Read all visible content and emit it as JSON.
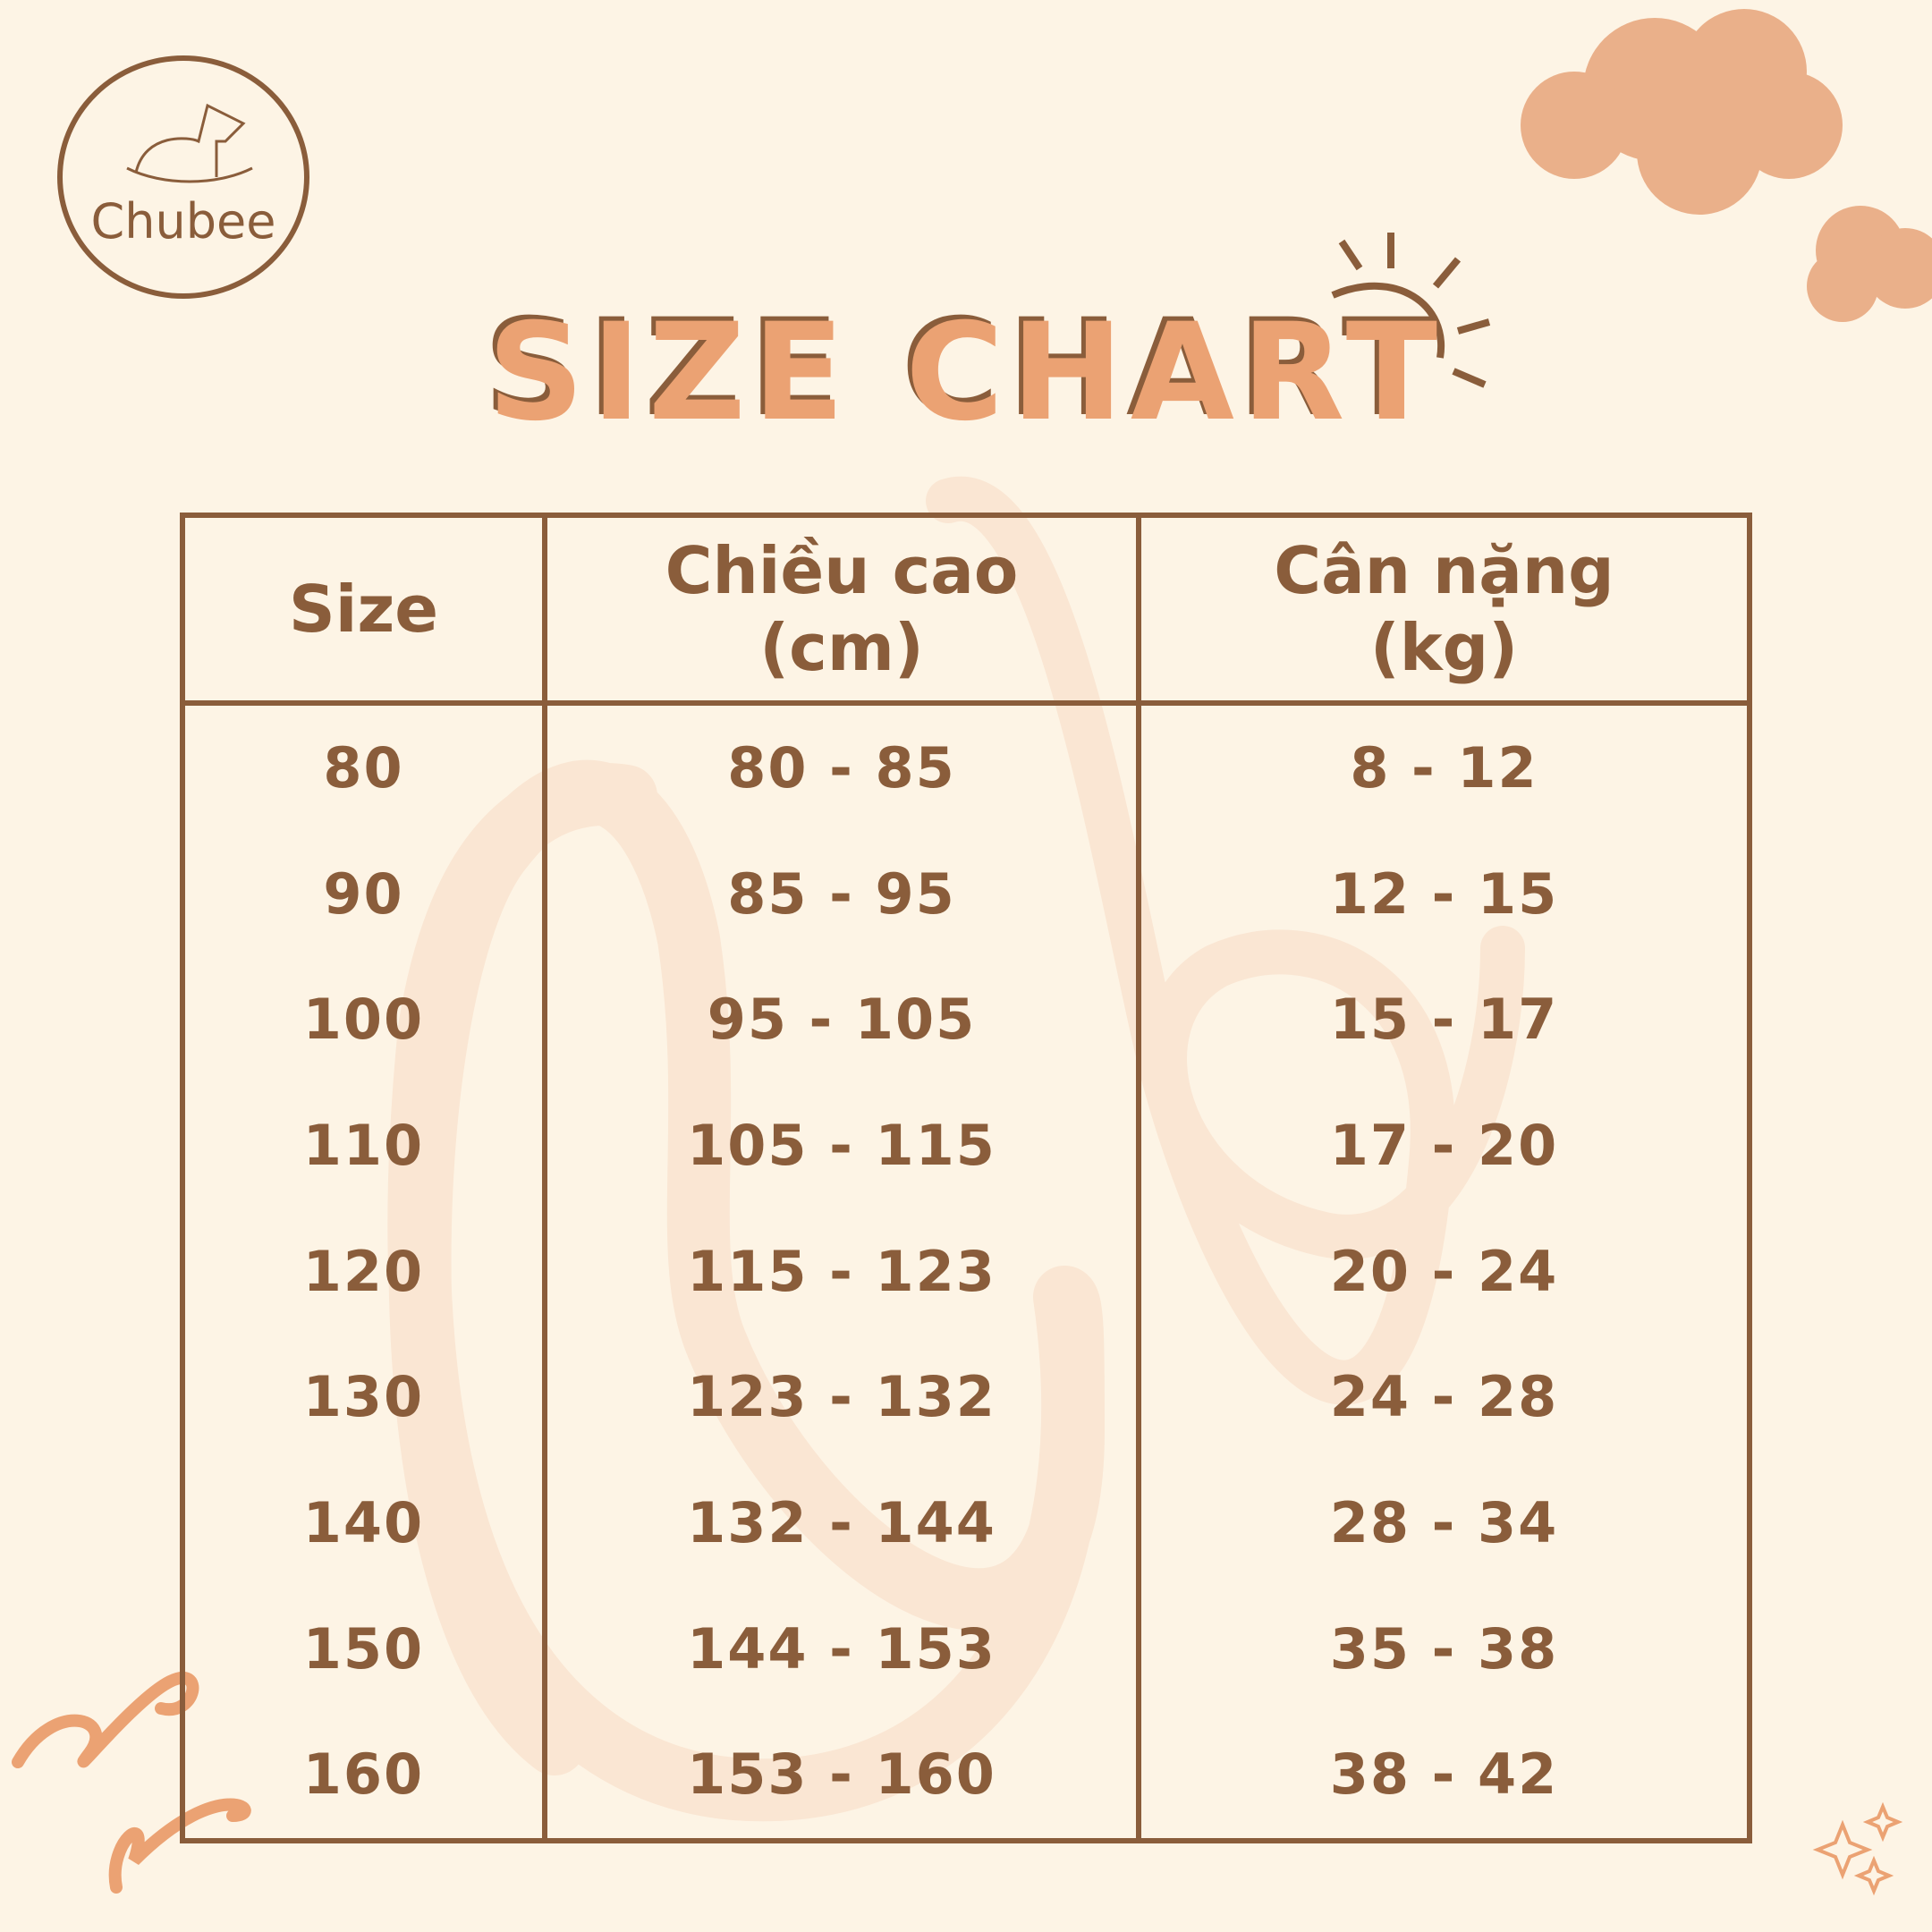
{
  "brand": {
    "name": "Chubee",
    "logo_icon": "rocking-horse-icon"
  },
  "title": "SIZE CHART",
  "colors": {
    "background": "#fdf4e5",
    "brown": "#8a5d3b",
    "orange": "#eba273"
  },
  "table": {
    "headers": [
      "Size",
      "Chiều cao\n(cm)",
      "Cân nặng\n(kg)"
    ],
    "rows": [
      [
        "80",
        "80 - 85",
        "8 - 12"
      ],
      [
        "90",
        "85 - 95",
        "12 - 15"
      ],
      [
        "100",
        "95 - 105",
        "15 - 17"
      ],
      [
        "110",
        "105 - 115",
        "17 - 20"
      ],
      [
        "120",
        "115 - 123",
        "20 - 24"
      ],
      [
        "130",
        "123 - 132",
        "24 - 28"
      ],
      [
        "140",
        "132 - 144",
        "28 - 34"
      ],
      [
        "150",
        "144 - 153",
        "35 - 38"
      ],
      [
        "160",
        "153 - 160",
        "38 - 42"
      ]
    ]
  }
}
